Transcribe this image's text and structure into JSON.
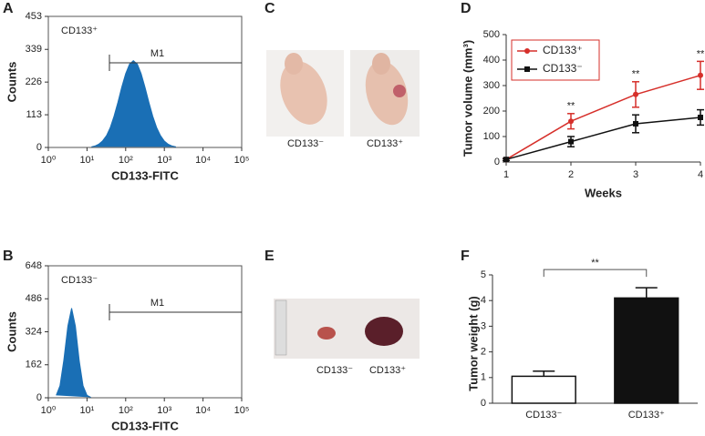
{
  "chart_data": [
    {
      "panel": "A",
      "type": "histogram",
      "label": "CD133⁺",
      "xlabel": "CD133-FITC",
      "ylabel": "Counts",
      "log_x": true,
      "color": "#1a6fb5",
      "x": [
        13,
        16,
        20,
        25,
        32,
        40,
        50,
        63,
        79,
        100,
        126,
        158,
        200,
        251,
        316,
        398,
        501,
        631,
        794,
        1000,
        1259,
        1585,
        1995
      ],
      "values": [
        2,
        5,
        11,
        22,
        41,
        69,
        108,
        156,
        208,
        255,
        288,
        300,
        288,
        255,
        208,
        156,
        108,
        69,
        41,
        22,
        11,
        5,
        2
      ],
      "xlim": [
        1,
        100000
      ],
      "xticks": [
        {
          "value": 1,
          "label": "10⁰"
        },
        {
          "value": 10,
          "label": "10¹"
        },
        {
          "value": 100,
          "label": "10²"
        },
        {
          "value": 1000,
          "label": "10³"
        },
        {
          "value": 10000,
          "label": "10⁴"
        },
        {
          "value": 100000,
          "label": "10⁵"
        }
      ],
      "ylim": [
        0,
        453
      ],
      "yticks": [
        0,
        113,
        226,
        339,
        453
      ],
      "gate": {
        "label": "M1",
        "range": [
          38,
          100000
        ]
      }
    },
    {
      "panel": "B",
      "type": "histogram",
      "label": "CD133⁻",
      "xlabel": "CD133-FITC",
      "ylabel": "Counts",
      "log_x": true,
      "color": "#1a6fb5",
      "x": [
        1.6,
        2,
        2.5,
        3.2,
        4,
        5,
        6.3,
        7.9,
        10,
        12.6
      ],
      "values": [
        12,
        59,
        181,
        352,
        440,
        352,
        181,
        59,
        12,
        2
      ],
      "xlim": [
        1,
        100000
      ],
      "xticks": [
        {
          "value": 1,
          "label": "10⁰"
        },
        {
          "value": 10,
          "label": "10¹"
        },
        {
          "value": 100,
          "label": "10²"
        },
        {
          "value": 1000,
          "label": "10³"
        },
        {
          "value": 10000,
          "label": "10⁴"
        },
        {
          "value": 100000,
          "label": "10⁵"
        }
      ],
      "ylim": [
        0,
        648
      ],
      "yticks": [
        0,
        162,
        324,
        486,
        648
      ],
      "gate": {
        "label": "M1",
        "range": [
          38,
          100000
        ]
      }
    },
    {
      "panel": "C",
      "type": "image",
      "labels": [
        "CD133⁻",
        "CD133⁺"
      ]
    },
    {
      "panel": "D",
      "type": "line",
      "xlabel": "Weeks",
      "ylabel": "Tumor volume (mm³)",
      "legend": "upper left",
      "x": [
        1,
        2,
        3,
        4
      ],
      "xlim": [
        1,
        4
      ],
      "xticks": [
        1,
        2,
        3,
        4
      ],
      "ylim": [
        0,
        500
      ],
      "yticks": [
        0,
        100,
        200,
        300,
        400,
        500
      ],
      "series": [
        {
          "name": "CD133⁺",
          "color": "#d62f2a",
          "marker": "circle",
          "values": [
            10,
            160,
            265,
            340
          ],
          "errors": [
            4,
            30,
            50,
            55
          ]
        },
        {
          "name": "CD133⁻",
          "color": "#111111",
          "marker": "square",
          "values": [
            10,
            80,
            150,
            175
          ],
          "errors": [
            4,
            20,
            35,
            30
          ]
        }
      ],
      "annotations": [
        {
          "x": 2,
          "text": "**"
        },
        {
          "x": 3,
          "text": "**"
        },
        {
          "x": 4,
          "text": "**"
        }
      ]
    },
    {
      "panel": "E",
      "type": "image",
      "labels": [
        "CD133⁻",
        "CD133⁺"
      ]
    },
    {
      "panel": "F",
      "type": "bar",
      "ylabel": "Tumor weight (g)",
      "categories": [
        "CD133⁻",
        "CD133⁺"
      ],
      "values": [
        1.05,
        4.1
      ],
      "errors": [
        0.2,
        0.4
      ],
      "colors": [
        "#ffffff",
        "#111111"
      ],
      "ylim": [
        0,
        5
      ],
      "yticks": [
        0,
        1,
        2,
        3,
        4,
        5
      ],
      "annotation": "**"
    }
  ]
}
